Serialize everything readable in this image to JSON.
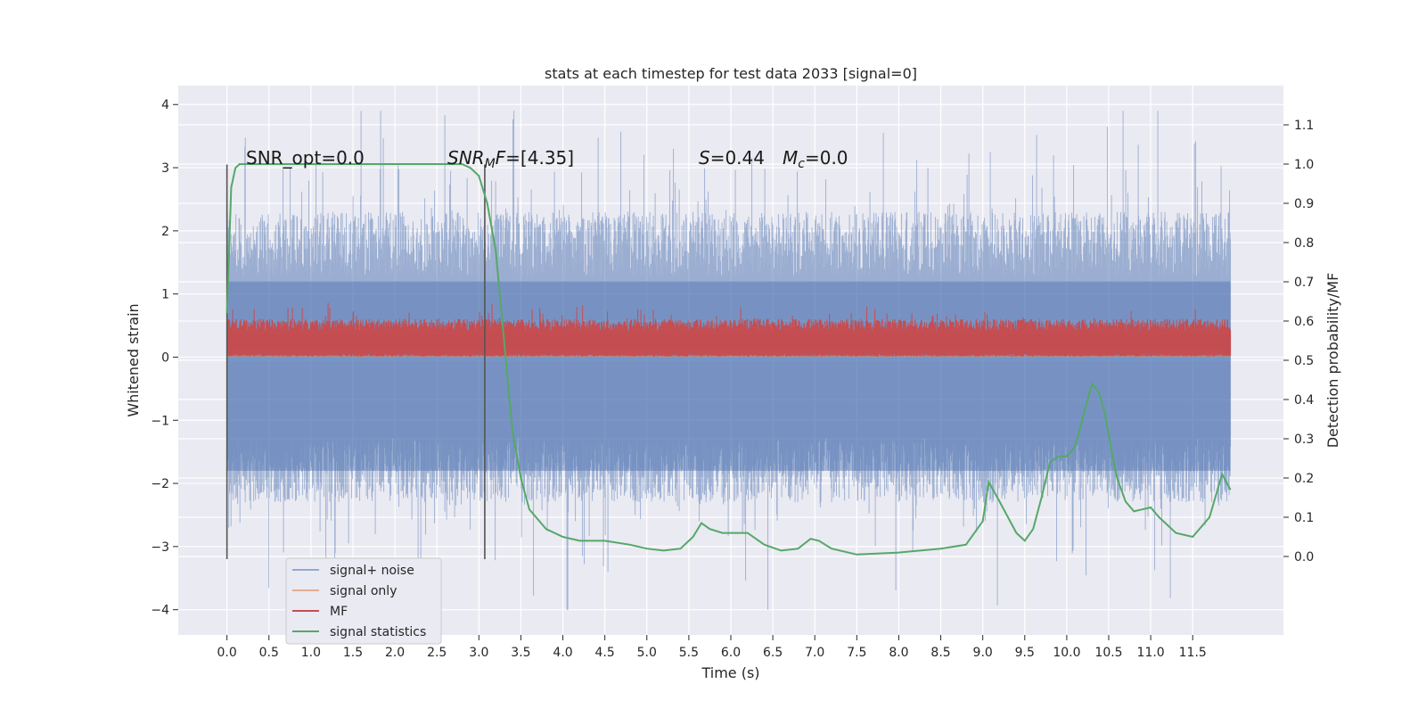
{
  "chart_data": {
    "type": "line",
    "title": "stats at each timestep for test data 2033 [signal=0]",
    "xlabel": "Time (s)",
    "ylabel": "Whitened strain",
    "ylabel_right": "Detection probability/MF",
    "xlim": [
      -0.58,
      12.58
    ],
    "ylim": [
      -4.4,
      4.3
    ],
    "ylim_right": [
      -0.2,
      1.2
    ],
    "xticks": [
      "0.0",
      "0.5",
      "1.0",
      "1.5",
      "2.0",
      "2.5",
      "3.0",
      "3.5",
      "4.0",
      "4.5",
      "5.0",
      "5.5",
      "6.0",
      "6.5",
      "7.0",
      "7.5",
      "8.0",
      "8.5",
      "9.0",
      "9.5",
      "10.0",
      "10.5",
      "11.0",
      "11.5"
    ],
    "yticks_left": [
      "4",
      "3",
      "2",
      "1",
      "0",
      "−1",
      "−2",
      "−3",
      "−4"
    ],
    "yticks_right": [
      "1.1",
      "1.0",
      "0.9",
      "0.8",
      "0.7",
      "0.6",
      "0.5",
      "0.4",
      "0.3",
      "0.2",
      "0.1",
      "0.0"
    ],
    "grid": true,
    "legend_position": "lower-left",
    "legend": [
      "signal+ noise",
      "signal only",
      "MF",
      "signal statistics"
    ],
    "colors": {
      "signal_noise": "#4c72b0",
      "signal_only": "#dd8452",
      "mf": "#c44e52",
      "signal_statistics": "#55a868",
      "vline": "#555555",
      "background": "#eaeaf2"
    },
    "annotations": {
      "snr_opt": "SNR_opt=0.0",
      "snr_mf": "SNR_MF=[4.35]",
      "s_value": "S=0.44",
      "mc_value": "M_c=0.0"
    },
    "vlines_x": [
      0.0,
      3.07
    ],
    "vlines_y": [
      -3.2,
      3.05
    ],
    "series": [
      {
        "name": "signal+ noise",
        "axis": "left",
        "t_range": [
          0.0,
          11.95
        ],
        "envelope_upper_typical": 2.3,
        "envelope_lower_typical": -2.3,
        "max": 3.9,
        "min": -4.0
      },
      {
        "name": "signal only",
        "axis": "left",
        "t_range": [
          0.0,
          11.95
        ],
        "values": "flat at 0"
      },
      {
        "name": "MF",
        "axis": "left",
        "t_range": [
          0.0,
          11.95
        ],
        "band_low": 0.05,
        "band_high": 0.55,
        "max": 1.0
      },
      {
        "name": "signal statistics",
        "axis": "right",
        "x": [
          0.0,
          0.05,
          0.1,
          0.15,
          0.2,
          0.5,
          1.0,
          1.5,
          2.0,
          2.5,
          2.8,
          2.9,
          3.0,
          3.1,
          3.2,
          3.3,
          3.4,
          3.5,
          3.6,
          3.8,
          4.0,
          4.2,
          4.5,
          4.8,
          5.0,
          5.2,
          5.4,
          5.55,
          5.65,
          5.75,
          5.9,
          6.2,
          6.4,
          6.6,
          6.8,
          6.95,
          7.05,
          7.2,
          7.5,
          8.0,
          8.5,
          8.8,
          9.0,
          9.07,
          9.2,
          9.4,
          9.5,
          9.6,
          9.7,
          9.8,
          9.9,
          10.0,
          10.1,
          10.2,
          10.3,
          10.38,
          10.45,
          10.55,
          10.6,
          10.7,
          10.8,
          10.9,
          11.0,
          11.1,
          11.3,
          11.5,
          11.7,
          11.85,
          11.95
        ],
        "values": [
          0.62,
          0.94,
          0.99,
          1.0,
          1.0,
          1.0,
          1.0,
          1.0,
          1.0,
          1.0,
          1.0,
          0.99,
          0.97,
          0.9,
          0.78,
          0.55,
          0.32,
          0.2,
          0.12,
          0.07,
          0.05,
          0.04,
          0.04,
          0.03,
          0.02,
          0.015,
          0.02,
          0.05,
          0.085,
          0.07,
          0.06,
          0.06,
          0.03,
          0.015,
          0.02,
          0.045,
          0.04,
          0.02,
          0.005,
          0.01,
          0.02,
          0.03,
          0.09,
          0.19,
          0.14,
          0.06,
          0.04,
          0.07,
          0.15,
          0.24,
          0.255,
          0.255,
          0.28,
          0.36,
          0.44,
          0.42,
          0.37,
          0.25,
          0.2,
          0.14,
          0.115,
          0.12,
          0.125,
          0.1,
          0.06,
          0.05,
          0.1,
          0.21,
          0.17
        ]
      }
    ]
  }
}
